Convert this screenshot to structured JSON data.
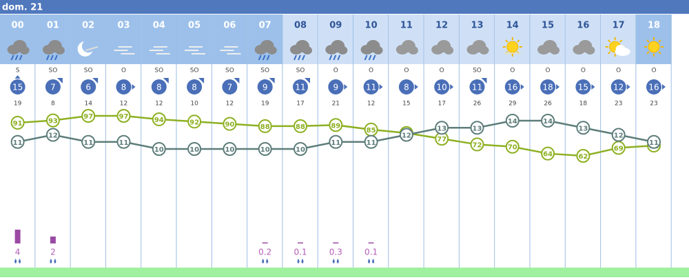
{
  "header": {
    "day": "dom. 21"
  },
  "hours": [
    {
      "hour": "00",
      "wind_dir": "S",
      "wind": 15,
      "gust": 19,
      "humidity": 91,
      "temp": 11,
      "rain": 4
    },
    {
      "hour": "01",
      "wind_dir": "SO",
      "wind": 7,
      "gust": 8,
      "humidity": 93,
      "temp": 12,
      "rain": 2
    },
    {
      "hour": "02",
      "wind_dir": "SO",
      "wind": 6,
      "gust": 14,
      "humidity": 97,
      "temp": 11,
      "rain": null
    },
    {
      "hour": "03",
      "wind_dir": "O",
      "wind": 8,
      "gust": 12,
      "humidity": 97,
      "temp": 11,
      "rain": null
    },
    {
      "hour": "04",
      "wind_dir": "SO",
      "wind": 8,
      "gust": 12,
      "humidity": 94,
      "temp": 10,
      "rain": null
    },
    {
      "hour": "05",
      "wind_dir": "SO",
      "wind": 8,
      "gust": 10,
      "humidity": 92,
      "temp": 10,
      "rain": null
    },
    {
      "hour": "06",
      "wind_dir": "SO",
      "wind": 7,
      "gust": 12,
      "humidity": 90,
      "temp": 10,
      "rain": null
    },
    {
      "hour": "07",
      "wind_dir": "SO",
      "wind": 9,
      "gust": 19,
      "humidity": 88,
      "temp": 10,
      "rain": 0.2
    },
    {
      "hour": "08",
      "wind_dir": "SO",
      "wind": 11,
      "gust": 17,
      "humidity": 88,
      "temp": 10,
      "rain": 0.1
    },
    {
      "hour": "09",
      "wind_dir": "O",
      "wind": 9,
      "gust": 21,
      "humidity": 89,
      "temp": 11,
      "rain": 0.3
    },
    {
      "hour": "10",
      "wind_dir": "O",
      "wind": 11,
      "gust": 12,
      "humidity": 85,
      "temp": 11,
      "rain": 0.1
    },
    {
      "hour": "11",
      "wind_dir": "O",
      "wind": 8,
      "gust": 15,
      "humidity": 82,
      "temp": 12,
      "rain": null
    },
    {
      "hour": "12",
      "wind_dir": "O",
      "wind": 10,
      "gust": 17,
      "humidity": 77,
      "temp": 13,
      "rain": null
    },
    {
      "hour": "13",
      "wind_dir": "SO",
      "wind": 11,
      "gust": 26,
      "humidity": 72,
      "temp": 13,
      "rain": null
    },
    {
      "hour": "14",
      "wind_dir": "O",
      "wind": 16,
      "gust": 29,
      "humidity": 70,
      "temp": 14,
      "rain": null
    },
    {
      "hour": "15",
      "wind_dir": "O",
      "wind": 18,
      "gust": 26,
      "humidity": 64,
      "temp": 14,
      "rain": null
    },
    {
      "hour": "16",
      "wind_dir": "O",
      "wind": 15,
      "gust": 18,
      "humidity": 62,
      "temp": 13,
      "rain": null
    },
    {
      "hour": "17",
      "wind_dir": "O",
      "wind": 12,
      "gust": 23,
      "humidity": 69,
      "temp": 12,
      "rain": null
    },
    {
      "hour": "18",
      "wind_dir": "O",
      "wind": 16,
      "gust": 23,
      "humidity": 71,
      "temp": 11,
      "rain": null
    }
  ]
}
